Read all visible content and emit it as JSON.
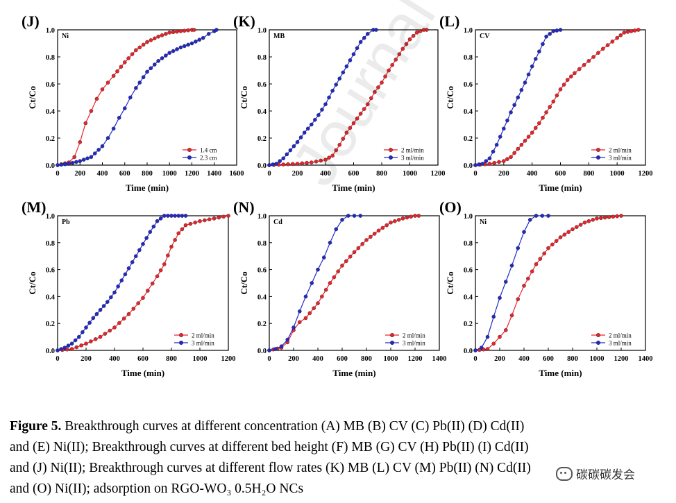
{
  "caption": {
    "label": "Figure 5.",
    "line1": " Breakthrough curves at different concentration (A) MB (B) CV (C) Pb(II) (D) Cd(II)",
    "line2": "and (E) Ni(II); Breakthrough curves at different bed height (F) MB (G) CV (H) Pb(II) (I) Cd(II)",
    "line3": "and (J) Ni(II); Breakthrough curves at different flow rates (K) MB (L) CV (M) Pb(II) (N) Cd(II)",
    "line4": "and (O) Ni(II); adsorption on RGO-WO₃ 0.5H₂O NCs"
  },
  "watermark": "Journal Pre-proof",
  "wechat_label": "碳碳碳发会",
  "colors": {
    "red": "#e8242a",
    "blue": "#2229c8",
    "axis": "#000000"
  },
  "chart_data": [
    {
      "panel": "(J)",
      "title": "Ni",
      "type": "line",
      "xlabel": "Time (min)",
      "ylabel": "Ct/Co",
      "xlim": [
        0,
        1600
      ],
      "ylim": [
        0,
        1.0
      ],
      "xticks": [
        0,
        200,
        400,
        600,
        800,
        1000,
        1200,
        1400,
        1600
      ],
      "yticks": [
        0.0,
        0.2,
        0.4,
        0.6,
        0.8,
        1.0
      ],
      "series": [
        {
          "name": "1.4 cm",
          "color": "red",
          "x": [
            0,
            100,
            150,
            200,
            250,
            300,
            350,
            400,
            450,
            500,
            600,
            700,
            800,
            900,
            1000,
            1100,
            1200,
            1220
          ],
          "y": [
            0,
            0.02,
            0.06,
            0.17,
            0.31,
            0.4,
            0.49,
            0.56,
            0.61,
            0.66,
            0.76,
            0.85,
            0.91,
            0.95,
            0.98,
            0.99,
            1.0,
            1.0
          ]
        },
        {
          "name": "2.3 cm",
          "color": "blue",
          "x": [
            0,
            100,
            200,
            300,
            400,
            450,
            500,
            550,
            600,
            650,
            700,
            800,
            900,
            1000,
            1100,
            1200,
            1300,
            1350,
            1400,
            1420
          ],
          "y": [
            0,
            0.01,
            0.03,
            0.06,
            0.14,
            0.2,
            0.27,
            0.35,
            0.42,
            0.5,
            0.57,
            0.69,
            0.77,
            0.83,
            0.87,
            0.9,
            0.94,
            0.97,
            0.99,
            1.0
          ]
        }
      ]
    },
    {
      "panel": "(K)",
      "title": "MB",
      "type": "line",
      "xlabel": "Time (min)",
      "ylabel": "Ct/Co",
      "xlim": [
        0,
        1200
      ],
      "ylim": [
        0,
        1.0
      ],
      "xticks": [
        0,
        200,
        400,
        600,
        800,
        1000,
        1200
      ],
      "yticks": [
        0.0,
        0.2,
        0.4,
        0.6,
        0.8,
        1.0
      ],
      "series": [
        {
          "name": "2 ml/min",
          "color": "red",
          "x": [
            0,
            100,
            200,
            300,
            400,
            450,
            500,
            550,
            600,
            650,
            700,
            750,
            800,
            850,
            900,
            950,
            1000,
            1050,
            1100,
            1120
          ],
          "y": [
            0,
            0.005,
            0.01,
            0.02,
            0.04,
            0.07,
            0.15,
            0.24,
            0.31,
            0.38,
            0.45,
            0.54,
            0.61,
            0.7,
            0.78,
            0.86,
            0.93,
            0.98,
            1.0,
            1.0
          ]
        },
        {
          "name": "3 ml/min",
          "color": "blue",
          "x": [
            0,
            50,
            100,
            150,
            200,
            250,
            300,
            350,
            400,
            450,
            500,
            550,
            600,
            650,
            700,
            740,
            760
          ],
          "y": [
            0,
            0.01,
            0.05,
            0.11,
            0.17,
            0.24,
            0.3,
            0.37,
            0.45,
            0.55,
            0.64,
            0.73,
            0.82,
            0.91,
            0.97,
            1.0,
            1.0
          ]
        }
      ]
    },
    {
      "panel": "(L)",
      "title": "CV",
      "type": "line",
      "xlabel": "Time (min)",
      "ylabel": "Ct/Co",
      "xlim": [
        0,
        1200
      ],
      "ylim": [
        0,
        1.0
      ],
      "xticks": [
        0,
        200,
        400,
        600,
        800,
        1000,
        1200
      ],
      "yticks": [
        0.0,
        0.2,
        0.4,
        0.6,
        0.8,
        1.0
      ],
      "series": [
        {
          "name": "2 ml/min",
          "color": "red",
          "x": [
            0,
            100,
            200,
            250,
            300,
            350,
            400,
            450,
            500,
            550,
            600,
            650,
            700,
            800,
            900,
            1000,
            1050,
            1100,
            1150
          ],
          "y": [
            0,
            0.01,
            0.03,
            0.06,
            0.12,
            0.18,
            0.24,
            0.31,
            0.39,
            0.47,
            0.56,
            0.63,
            0.68,
            0.77,
            0.86,
            0.94,
            0.98,
            0.99,
            1.0
          ]
        },
        {
          "name": "3 ml/min",
          "color": "blue",
          "x": [
            0,
            50,
            100,
            150,
            200,
            250,
            300,
            350,
            400,
            450,
            500,
            550,
            600
          ],
          "y": [
            0,
            0.01,
            0.05,
            0.15,
            0.27,
            0.39,
            0.5,
            0.61,
            0.73,
            0.84,
            0.95,
            0.99,
            1.0
          ]
        }
      ]
    },
    {
      "panel": "(M)",
      "title": "Pb",
      "type": "line",
      "xlabel": "Time (min)",
      "ylabel": "Ct/Co",
      "xlim": [
        0,
        1200
      ],
      "ylim": [
        0,
        1.0
      ],
      "xticks": [
        0,
        200,
        400,
        600,
        800,
        1000,
        1200
      ],
      "yticks": [
        0.0,
        0.2,
        0.4,
        0.6,
        0.8,
        1.0
      ],
      "series": [
        {
          "name": "2 ml/min",
          "color": "red",
          "x": [
            0,
            100,
            200,
            300,
            400,
            500,
            600,
            700,
            750,
            800,
            850,
            900,
            1000,
            1100,
            1200
          ],
          "y": [
            0,
            0.01,
            0.05,
            0.1,
            0.17,
            0.27,
            0.39,
            0.55,
            0.64,
            0.77,
            0.87,
            0.93,
            0.96,
            0.98,
            1.0
          ]
        },
        {
          "name": "3 ml/min",
          "color": "blue",
          "x": [
            0,
            50,
            100,
            150,
            200,
            250,
            300,
            350,
            400,
            450,
            500,
            550,
            600,
            650,
            700,
            750,
            800,
            850,
            900
          ],
          "y": [
            0,
            0.02,
            0.05,
            0.1,
            0.17,
            0.24,
            0.3,
            0.36,
            0.43,
            0.52,
            0.61,
            0.7,
            0.79,
            0.88,
            0.96,
            1.0,
            1.0,
            1.0,
            1.0
          ]
        }
      ]
    },
    {
      "panel": "(N)",
      "title": "Cd",
      "type": "line",
      "xlabel": "Time (min)",
      "ylabel": "Ct/Co",
      "xlim": [
        0,
        1400
      ],
      "ylim": [
        0,
        1.0
      ],
      "xticks": [
        0,
        200,
        400,
        600,
        800,
        1000,
        1200,
        1400
      ],
      "yticks": [
        0.0,
        0.2,
        0.4,
        0.6,
        0.8,
        1.0
      ],
      "series": [
        {
          "name": "2 ml/min",
          "color": "red",
          "x": [
            0,
            100,
            150,
            200,
            250,
            300,
            400,
            500,
            600,
            700,
            800,
            900,
            1000,
            1100,
            1200,
            1230
          ],
          "y": [
            0,
            0.02,
            0.06,
            0.15,
            0.21,
            0.24,
            0.35,
            0.5,
            0.63,
            0.73,
            0.82,
            0.89,
            0.95,
            0.98,
            1.0,
            1.0
          ]
        },
        {
          "name": "3 ml/min",
          "color": "blue",
          "x": [
            0,
            50,
            100,
            150,
            200,
            250,
            300,
            350,
            400,
            450,
            500,
            550,
            600,
            650,
            700,
            750
          ],
          "y": [
            0,
            0.01,
            0.03,
            0.08,
            0.17,
            0.29,
            0.4,
            0.5,
            0.6,
            0.69,
            0.8,
            0.9,
            0.97,
            1.0,
            1.0,
            1.0
          ]
        }
      ]
    },
    {
      "panel": "(O)",
      "title": "Ni",
      "type": "line",
      "xlabel": "Time (min)",
      "ylabel": "Ct/Co",
      "xlim": [
        0,
        1400
      ],
      "ylim": [
        0,
        1.0
      ],
      "xticks": [
        0,
        200,
        400,
        600,
        800,
        1000,
        1200,
        1400
      ],
      "yticks": [
        0.0,
        0.2,
        0.4,
        0.6,
        0.8,
        1.0
      ],
      "series": [
        {
          "name": "2 ml/min",
          "color": "red",
          "x": [
            0,
            100,
            150,
            200,
            250,
            300,
            350,
            400,
            500,
            600,
            700,
            800,
            900,
            1000,
            1100,
            1200
          ],
          "y": [
            0,
            0.01,
            0.05,
            0.1,
            0.15,
            0.26,
            0.38,
            0.48,
            0.64,
            0.76,
            0.84,
            0.9,
            0.95,
            0.98,
            0.99,
            1.0
          ]
        },
        {
          "name": "3 ml/min",
          "color": "blue",
          "x": [
            0,
            50,
            100,
            150,
            200,
            250,
            300,
            350,
            400,
            450,
            500,
            550,
            600
          ],
          "y": [
            0,
            0.02,
            0.1,
            0.25,
            0.39,
            0.51,
            0.63,
            0.76,
            0.88,
            0.97,
            1.0,
            1.0,
            1.0
          ]
        }
      ]
    }
  ]
}
